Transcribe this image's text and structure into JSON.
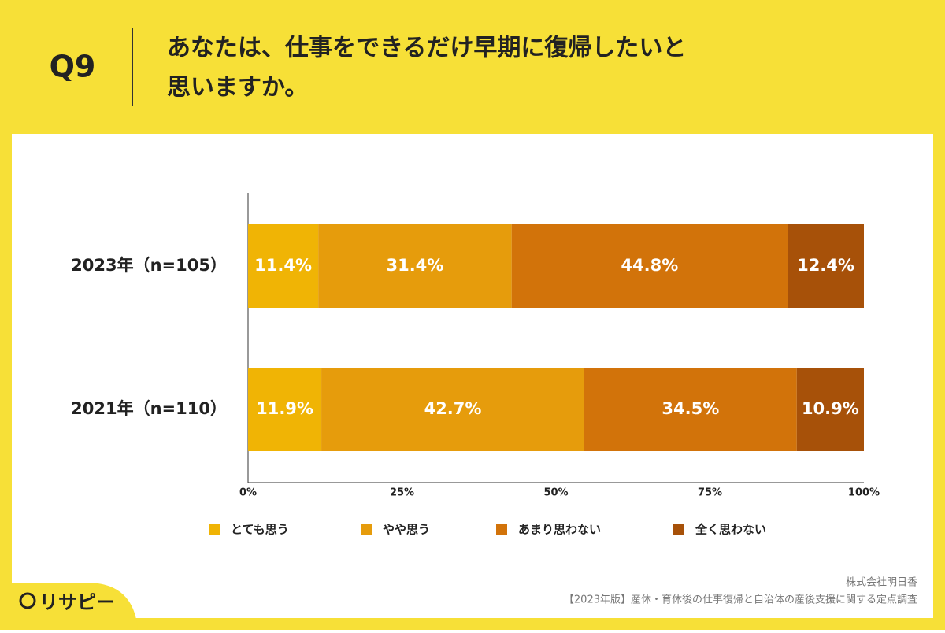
{
  "chart_data": {
    "type": "stacked-bar-horizontal",
    "header_label": "Q9",
    "title_lines": [
      "あなたは、仕事をできるだけ早期に復帰したいと",
      "思いますか。"
    ],
    "categories": [
      "2023年（n=105）",
      "2021年（n=110）"
    ],
    "series": [
      {
        "name": "とても思う",
        "color": "#f0b405",
        "values": [
          11.4,
          11.9
        ],
        "value_labels": [
          "11.4%",
          "11.9%"
        ]
      },
      {
        "name": "やや思う",
        "color": "#e69c0c",
        "values": [
          31.4,
          42.7
        ],
        "value_labels": [
          "31.4%",
          "42.7%"
        ]
      },
      {
        "name": "あまり思わない",
        "color": "#d2730a",
        "values": [
          44.8,
          34.5
        ],
        "value_labels": [
          "44.8%",
          "34.5%"
        ]
      },
      {
        "name": "全く思わない",
        "color": "#a75109",
        "values": [
          12.4,
          10.9
        ],
        "value_labels": [
          "12.4%",
          "10.9%"
        ]
      }
    ],
    "xlim": [
      0,
      100
    ],
    "xticks": [
      {
        "value": 0,
        "label": "0%"
      },
      {
        "value": 25,
        "label": "25%"
      },
      {
        "value": 50,
        "label": "50%"
      },
      {
        "value": 75,
        "label": "75%"
      },
      {
        "value": 100,
        "label": "100%"
      }
    ],
    "source_company": "株式会社明日香",
    "source_survey": "【2023年版】産休・育休後の仕事復帰と自治体の産後支援に関する定点調査",
    "logo": "リサピー"
  }
}
